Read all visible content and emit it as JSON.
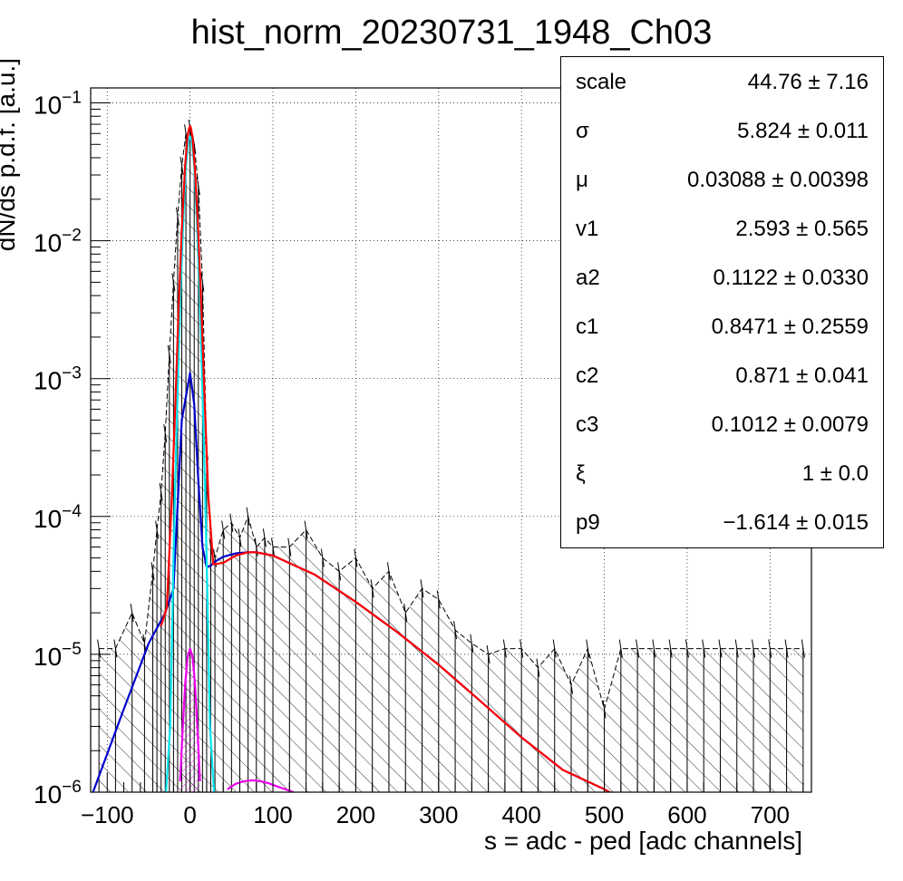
{
  "stats": {
    "rows": [
      {
        "name": "scale",
        "value": "44.76 ± 7.16"
      },
      {
        "name": "σ",
        "value": "5.824 ± 0.011"
      },
      {
        "name": "μ",
        "value": "0.03088 ± 0.00398"
      },
      {
        "name": "v1",
        "value": "2.593 ± 0.565"
      },
      {
        "name": "a2",
        "value": "0.1122 ± 0.0330"
      },
      {
        "name": "c1",
        "value": "0.8471 ± 0.2559"
      },
      {
        "name": "c2",
        "value": "0.871 ± 0.041"
      },
      {
        "name": "c3",
        "value": "0.1012 ± 0.0079"
      },
      {
        "name": "ξ",
        "value": "1 ± 0.0"
      },
      {
        "name": "p9",
        "value": "−1.614 ± 0.015"
      }
    ]
  },
  "chart_data": {
    "type": "line",
    "title": "hist_norm_20230731_1948_Ch03",
    "xlabel": "s = adc - ped [adc channels]",
    "ylabel": "dN/ds p.d.f. [a.u.]",
    "xlim": [
      -120,
      750
    ],
    "ylim": [
      1e-06,
      0.12
    ],
    "yscale": "log",
    "grid": true,
    "x_ticks": [
      -100,
      0,
      100,
      200,
      300,
      400,
      500,
      600,
      700
    ],
    "x_tick_labels": [
      "−100",
      "0",
      "100",
      "200",
      "300",
      "400",
      "500",
      "600",
      "700"
    ],
    "y_ticks": [
      {
        "value": 1e-06,
        "base": "10",
        "exp": "−6"
      },
      {
        "value": 1e-05,
        "base": "10",
        "exp": "−5"
      },
      {
        "value": 0.0001,
        "base": "10",
        "exp": "−4"
      },
      {
        "value": 0.001,
        "base": "10",
        "exp": "−3"
      },
      {
        "value": 0.01,
        "base": "10",
        "exp": "−2"
      },
      {
        "value": 0.1,
        "base": "10",
        "exp": "−1"
      }
    ],
    "series": [
      {
        "color": "#ff0000",
        "x": [
          -35,
          -28,
          -22,
          -18,
          -14,
          -10,
          -6,
          -3,
          -1,
          0,
          1,
          3,
          6,
          10,
          14,
          18,
          22,
          28,
          40,
          55,
          70,
          80,
          100,
          150,
          200,
          250,
          300,
          350,
          400,
          450,
          500,
          520
        ],
        "y": [
          1.6e-05,
          2.2e-05,
          0.00014,
          0.0006,
          0.003,
          0.012,
          0.035,
          0.058,
          0.066,
          0.068,
          0.066,
          0.056,
          0.032,
          0.011,
          0.0028,
          0.0006,
          0.00014,
          4.5e-05,
          4.6e-05,
          5.2e-05,
          5.5e-05,
          5.5e-05,
          5.2e-05,
          3.8e-05,
          2.4e-05,
          1.45e-05,
          8.4e-06,
          4.6e-06,
          2.5e-06,
          1.45e-06,
          1.05e-06,
          9e-07
        ]
      },
      {
        "color": "#00e5ee",
        "x": [
          -30,
          -24,
          -20,
          -16,
          -12,
          -8,
          -5,
          -2,
          0,
          2,
          5,
          8,
          12,
          16,
          20,
          24,
          30
        ],
        "y": [
          8e-07,
          3e-06,
          5e-05,
          0.0005,
          0.0035,
          0.015,
          0.035,
          0.053,
          0.057,
          0.053,
          0.035,
          0.015,
          0.0035,
          0.0005,
          5e-05,
          3e-06,
          8e-07
        ]
      },
      {
        "color": "#0000cc",
        "x": [
          -120,
          -80,
          -50,
          -30,
          -20,
          -10,
          0,
          5,
          10,
          15,
          20,
          25,
          30,
          40,
          55,
          70,
          80,
          100,
          150,
          200,
          250,
          300,
          350,
          400,
          450,
          500,
          520
        ],
        "y": [
          9e-07,
          4e-06,
          1.2e-05,
          2e-05,
          3e-05,
          0.0005,
          0.0011,
          0.00065,
          0.00018,
          6e-05,
          4.3e-05,
          4.4e-05,
          4.7e-05,
          5.1e-05,
          5.4e-05,
          5.5e-05,
          5.5e-05,
          5.2e-05,
          3.8e-05,
          2.4e-05,
          1.45e-05,
          8.4e-06,
          4.6e-06,
          2.5e-06,
          1.45e-06,
          1.05e-06,
          9e-07
        ]
      },
      {
        "color": "#ee00ee",
        "x": [
          -12,
          -9,
          -6,
          -3,
          0,
          3,
          6,
          9,
          12
        ],
        "y": [
          1.2e-06,
          2.8e-06,
          6e-06,
          9.6e-06,
          1.1e-05,
          9.6e-06,
          6e-06,
          2.8e-06,
          1.2e-06
        ]
      },
      {
        "color": "#ee00ee",
        "x": [
          45,
          55,
          65,
          75,
          85,
          95,
          105,
          115,
          125
        ],
        "y": [
          1.05e-06,
          1.15e-06,
          1.2e-06,
          1.22e-06,
          1.2e-06,
          1.16e-06,
          1.1e-06,
          1.05e-06,
          1e-06
        ]
      }
    ],
    "histogram": {
      "color": "#000000",
      "x": [
        -110,
        -90,
        -70,
        -55,
        -45,
        -40,
        -35,
        -30,
        -25,
        -20,
        -15,
        -10,
        -5,
        0,
        5,
        10,
        15,
        20,
        25,
        30,
        40,
        50,
        60,
        70,
        80,
        90,
        100,
        120,
        140,
        160,
        180,
        200,
        220,
        240,
        260,
        280,
        300,
        320,
        340,
        360,
        380,
        400,
        420,
        440,
        460,
        480,
        500,
        520,
        540,
        560,
        580,
        600,
        620,
        640,
        660,
        680,
        700,
        720,
        740
      ],
      "y": [
        1.1e-05,
        1.1e-05,
        2e-05,
        1.2e-05,
        4e-05,
        8e-05,
        0.00015,
        0.0004,
        0.0015,
        0.005,
        0.015,
        0.035,
        0.06,
        0.065,
        0.05,
        0.025,
        0.005,
        0.0003,
        6e-05,
        5e-05,
        8e-05,
        9e-05,
        7e-05,
        0.0001,
        6e-05,
        7e-05,
        6e-05,
        6e-05,
        8e-05,
        5e-05,
        4e-05,
        5e-05,
        3e-05,
        4e-05,
        2e-05,
        3e-05,
        2.5e-05,
        1.5e-05,
        1.2e-05,
        1e-05,
        1.1e-05,
        1.1e-05,
        8e-06,
        1.1e-05,
        6e-06,
        1.1e-05,
        4e-06,
        1.1e-05,
        1.1e-05,
        1.1e-05,
        1.1e-05,
        1.1e-05,
        1.1e-05,
        1.1e-05,
        1.1e-05,
        1.1e-05,
        1.1e-05,
        1.1e-05,
        1.1e-05
      ]
    }
  }
}
